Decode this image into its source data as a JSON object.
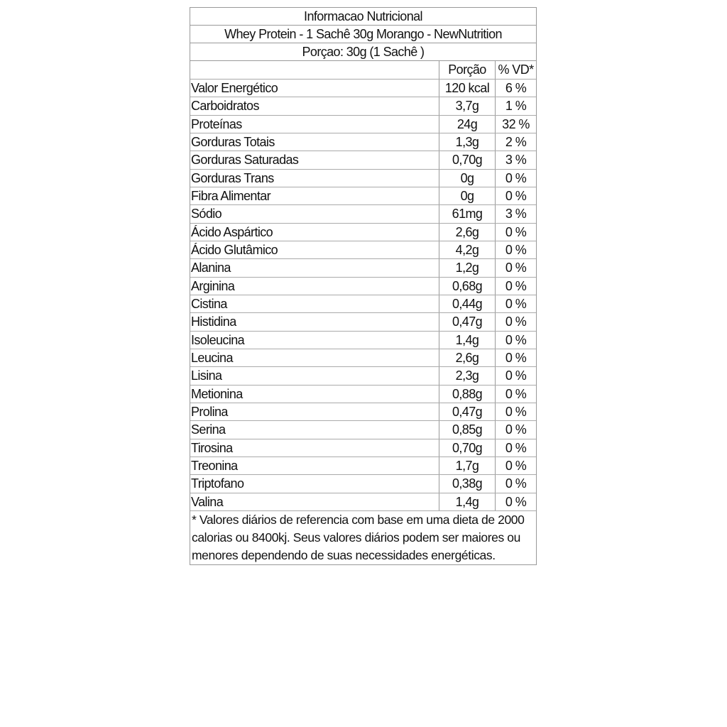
{
  "title": "Informacao Nutricional",
  "product": "Whey Protein - 1 Sachê 30g Morango - NewNutrition",
  "serving": "Porçao: 30g (1 Sachê )",
  "headers": {
    "portion": "Porção",
    "vd": "% VD*"
  },
  "rows": [
    {
      "name": "Valor Energético",
      "portion": "120 kcal",
      "vd": "6 %"
    },
    {
      "name": "Carboidratos",
      "portion": "3,7g",
      "vd": "1 %"
    },
    {
      "name": "Proteínas",
      "portion": "24g",
      "vd": "32 %"
    },
    {
      "name": "Gorduras Totais",
      "portion": "1,3g",
      "vd": "2 %"
    },
    {
      "name": "Gorduras Saturadas",
      "portion": "0,70g",
      "vd": "3 %"
    },
    {
      "name": "Gorduras Trans",
      "portion": "0g",
      "vd": "0 %"
    },
    {
      "name": "Fibra Alimentar",
      "portion": "0g",
      "vd": "0 %"
    },
    {
      "name": "Sódio",
      "portion": "61mg",
      "vd": "3 %"
    },
    {
      "name": "Ácido Aspártico",
      "portion": "2,6g",
      "vd": "0 %"
    },
    {
      "name": "Ácido Glutâmico",
      "portion": "4,2g",
      "vd": "0 %"
    },
    {
      "name": "Alanina",
      "portion": "1,2g",
      "vd": "0 %"
    },
    {
      "name": "Arginina",
      "portion": "0,68g",
      "vd": "0 %"
    },
    {
      "name": "Cistina",
      "portion": "0,44g",
      "vd": "0 %"
    },
    {
      "name": "Histidina",
      "portion": "0,47g",
      "vd": "0 %"
    },
    {
      "name": "Isoleucina",
      "portion": "1,4g",
      "vd": "0 %"
    },
    {
      "name": "Leucina",
      "portion": "2,6g",
      "vd": "0 %"
    },
    {
      "name": "Lisina",
      "portion": "2,3g",
      "vd": "0 %"
    },
    {
      "name": "Metionina",
      "portion": "0,88g",
      "vd": "0 %"
    },
    {
      "name": "Prolina",
      "portion": "0,47g",
      "vd": "0 %"
    },
    {
      "name": "Serina",
      "portion": "0,85g",
      "vd": "0 %"
    },
    {
      "name": "Tirosina",
      "portion": "0,70g",
      "vd": "0 %"
    },
    {
      "name": "Treonina",
      "portion": "1,7g",
      "vd": "0 %"
    },
    {
      "name": "Triptofano",
      "portion": "0,38g",
      "vd": "0 %"
    },
    {
      "name": "Valina",
      "portion": "1,4g",
      "vd": "0 %"
    }
  ],
  "footnote": "* Valores diários de referencia com base em uma dieta de 2000 calorias ou 8400kj. Seus valores diários podem ser maiores ou menores dependendo de suas necessidades energéticas."
}
